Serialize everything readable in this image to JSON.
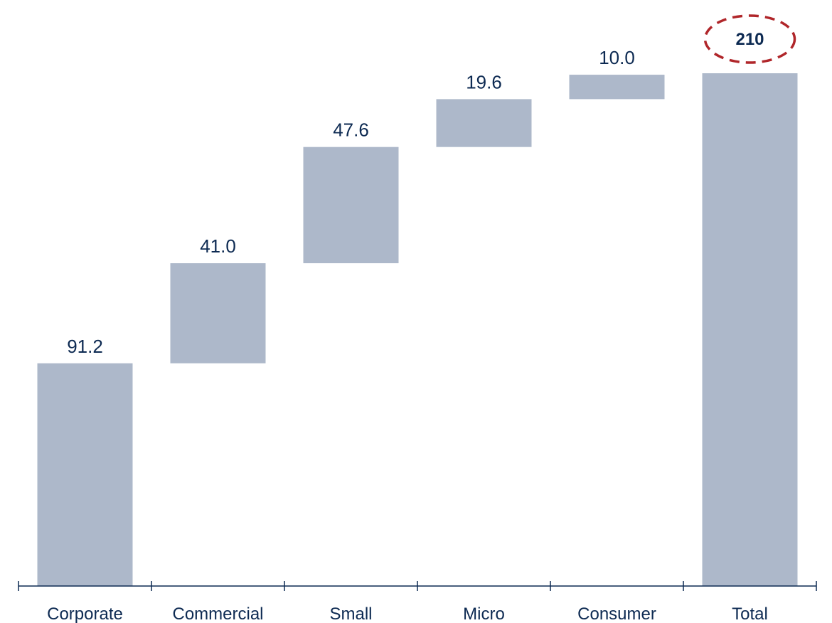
{
  "chart_data": {
    "type": "bar",
    "subtype": "waterfall",
    "categories": [
      "Corporate",
      "Commercial",
      "Small",
      "Micro",
      "Consumer",
      "Total"
    ],
    "values": [
      91.2,
      41.0,
      47.6,
      19.6,
      10.0,
      210
    ],
    "value_labels": [
      "91.2",
      "41.0",
      "47.6",
      "19.6",
      "10.0",
      "210"
    ],
    "total_index": 5,
    "highlighted_index": 5,
    "ylim": [
      0,
      210
    ],
    "grid": false,
    "legend": false,
    "title": "",
    "xlabel": "",
    "ylabel": ""
  },
  "colors": {
    "bar": "#adb8ca",
    "text": "#0d2a52",
    "highlight": "#b0262a"
  }
}
